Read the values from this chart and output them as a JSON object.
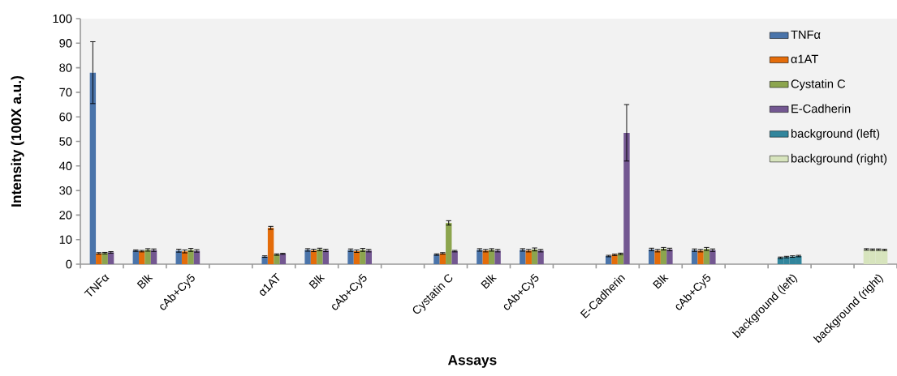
{
  "chart_data": {
    "type": "bar",
    "xlabel": "Assays",
    "ylabel": "Intensity (100X a.u.)",
    "categories": [
      "TNFα",
      "Blk",
      "cAb+Cy5",
      null,
      "α1AT",
      "Blk",
      "cAb+Cy5",
      null,
      "Cystatin C",
      "Blk",
      "cAb+Cy5",
      null,
      "E-Cadherin",
      "Blk",
      "cAb+Cy5",
      null,
      "background (left)",
      null,
      "background (right)"
    ],
    "ylim": [
      0,
      100
    ],
    "yticks": [
      0,
      10,
      20,
      30,
      40,
      50,
      60,
      70,
      80,
      90,
      100
    ],
    "legend": "top right",
    "series": [
      {
        "name": "TNFα",
        "color": "#4a74aa",
        "values": [
          78,
          5.5,
          5.5,
          null,
          3.1,
          5.8,
          5.7,
          null,
          3.9,
          5.8,
          5.8,
          null,
          3.3,
          6.0,
          5.7,
          null,
          2.6,
          null,
          6.0
        ],
        "errors": [
          12.6,
          0.3,
          0.6,
          null,
          0.3,
          0.5,
          0.5,
          null,
          0.3,
          0.5,
          0.5,
          null,
          0.3,
          0.5,
          0.5,
          null,
          0.3,
          null,
          0.3
        ],
        "colors": [
          "#4a74aa",
          "#4a74aa",
          "#4a74aa",
          null,
          "#4a74aa",
          "#4a74aa",
          "#4a74aa",
          null,
          "#4a74aa",
          "#4a74aa",
          "#4a74aa",
          null,
          "#4a74aa",
          "#4a74aa",
          "#4a74aa",
          null,
          "#31859c",
          null,
          "#d7e4bd"
        ]
      },
      {
        "name": "α1AT",
        "color": "#e46c0a",
        "values": [
          4.4,
          5.3,
          5.2,
          null,
          14.8,
          5.6,
          5.3,
          null,
          4.4,
          5.5,
          5.5,
          null,
          3.8,
          5.5,
          5.5,
          null,
          2.9,
          null,
          5.9
        ],
        "errors": [
          0.3,
          0.3,
          0.6,
          null,
          0.6,
          0.5,
          0.5,
          null,
          0.3,
          0.5,
          0.5,
          null,
          0.3,
          0.5,
          0.5,
          null,
          0.3,
          null,
          0.3
        ],
        "colors": [
          "#e46c0a",
          "#e46c0a",
          "#e46c0a",
          null,
          "#e46c0a",
          "#e46c0a",
          "#e46c0a",
          null,
          "#e46c0a",
          "#e46c0a",
          "#e46c0a",
          null,
          "#e46c0a",
          "#e46c0a",
          "#e46c0a",
          null,
          "#31859c",
          null,
          "#d7e4bd"
        ]
      },
      {
        "name": "Cystatin C",
        "color": "#8ca54e",
        "values": [
          4.5,
          5.8,
          5.8,
          null,
          3.9,
          6.0,
          5.8,
          null,
          16.8,
          5.8,
          6.0,
          null,
          4.2,
          6.3,
          6.2,
          null,
          3.1,
          null,
          5.9
        ],
        "errors": [
          0.3,
          0.5,
          0.6,
          null,
          0.3,
          0.5,
          0.6,
          null,
          0.9,
          0.5,
          0.6,
          null,
          0.3,
          0.5,
          0.6,
          null,
          0.3,
          null,
          0.3
        ],
        "colors": [
          "#8ca54e",
          "#8ca54e",
          "#8ca54e",
          null,
          "#8ca54e",
          "#8ca54e",
          "#8ca54e",
          null,
          "#8ca54e",
          "#8ca54e",
          "#8ca54e",
          null,
          "#8ca54e",
          "#8ca54e",
          "#8ca54e",
          null,
          "#31859c",
          null,
          "#d7e4bd"
        ]
      },
      {
        "name": "E-Cadherin",
        "color": "#735791",
        "values": [
          4.8,
          5.7,
          5.4,
          null,
          4.2,
          5.6,
          5.5,
          null,
          5.3,
          5.5,
          5.5,
          null,
          53.5,
          6.0,
          5.7,
          null,
          3.3,
          null,
          5.8
        ],
        "errors": [
          0.3,
          0.5,
          0.5,
          null,
          0.2,
          0.5,
          0.5,
          null,
          0.3,
          0.5,
          0.5,
          null,
          11.5,
          0.5,
          0.5,
          null,
          0.3,
          null,
          0.3
        ],
        "colors": [
          "#735791",
          "#735791",
          "#735791",
          null,
          "#735791",
          "#735791",
          "#735791",
          null,
          "#735791",
          "#735791",
          "#735791",
          null,
          "#735791",
          "#735791",
          "#735791",
          null,
          "#31859c",
          null,
          "#d7e4bd"
        ]
      },
      {
        "name": "background (left)",
        "color": "#31859c",
        "values": [
          null,
          null,
          null,
          null,
          null,
          null,
          null,
          null,
          null,
          null,
          null,
          null,
          null,
          null,
          null,
          null,
          null,
          null,
          null
        ]
      },
      {
        "name": "background (right)",
        "color": "#d7e4bd",
        "values": [
          null,
          null,
          null,
          null,
          null,
          null,
          null,
          null,
          null,
          null,
          null,
          null,
          null,
          null,
          null,
          null,
          null,
          null,
          null
        ]
      }
    ]
  }
}
